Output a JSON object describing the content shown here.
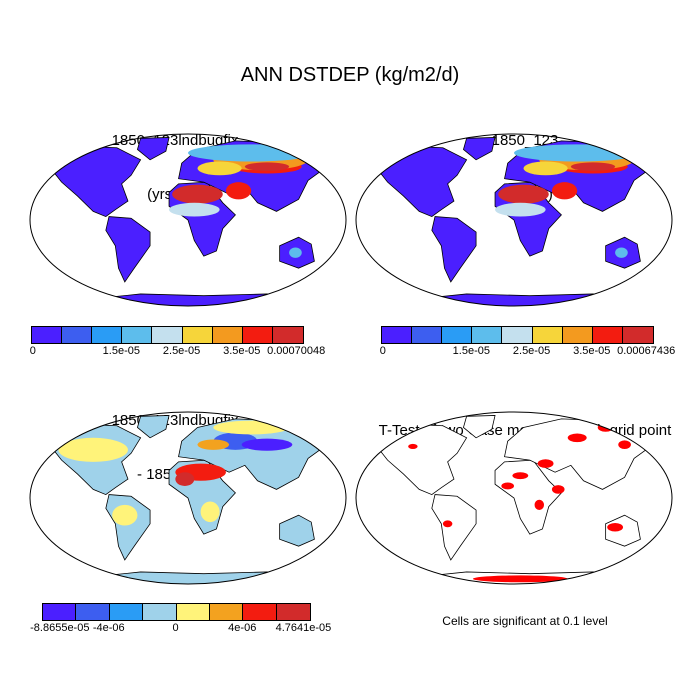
{
  "title": "ANN DSTDEP (kg/m2/d)",
  "panels": {
    "top_left": {
      "title_line1": "1850_123lndbugfix",
      "title_line2": "(yrs 2-9)"
    },
    "top_right": {
      "title_line1": "1850_123",
      "title_line2": "(yrs 2-9)"
    },
    "bottom_left": {
      "title_line1": "1850_123lndbugfix",
      "title_line2": "- 1850_123"
    },
    "bottom_right": {
      "title_line1": "T-Test of two Case means at each grid point",
      "note": "Cells are significant at 0.1 level"
    }
  },
  "colorbars": {
    "top_left": {
      "colors": [
        "#4b1fff",
        "#3d5ef0",
        "#2a9cf5",
        "#5dbdec",
        "#c4e0ee",
        "#f6d53a",
        "#f39a1f",
        "#f31c10",
        "#d22b2b"
      ],
      "labels": [
        "0",
        "1.5e-05",
        "2.5e-05",
        "3.5e-05",
        "0.00070048"
      ]
    },
    "top_right": {
      "colors": [
        "#4b1fff",
        "#3d5ef0",
        "#2a9cf5",
        "#5dbdec",
        "#c4e0ee",
        "#f6d53a",
        "#f39a1f",
        "#f31c10",
        "#d22b2b"
      ],
      "labels": [
        "0",
        "1.5e-05",
        "2.5e-05",
        "3.5e-05",
        "0.00067436"
      ]
    },
    "bottom_left": {
      "colors": [
        "#4b1fff",
        "#3d5ef0",
        "#2a9cf5",
        "#9fd2ea",
        "#fff37a",
        "#f3a21f",
        "#f31c10",
        "#d22b2b"
      ],
      "labels": [
        "-8.8655e-05",
        "-4e-06",
        "0",
        "4e-06",
        "4.7641e-05"
      ]
    }
  },
  "colors": {
    "ocean": "#ffffff",
    "significant": "#ff0000"
  }
}
